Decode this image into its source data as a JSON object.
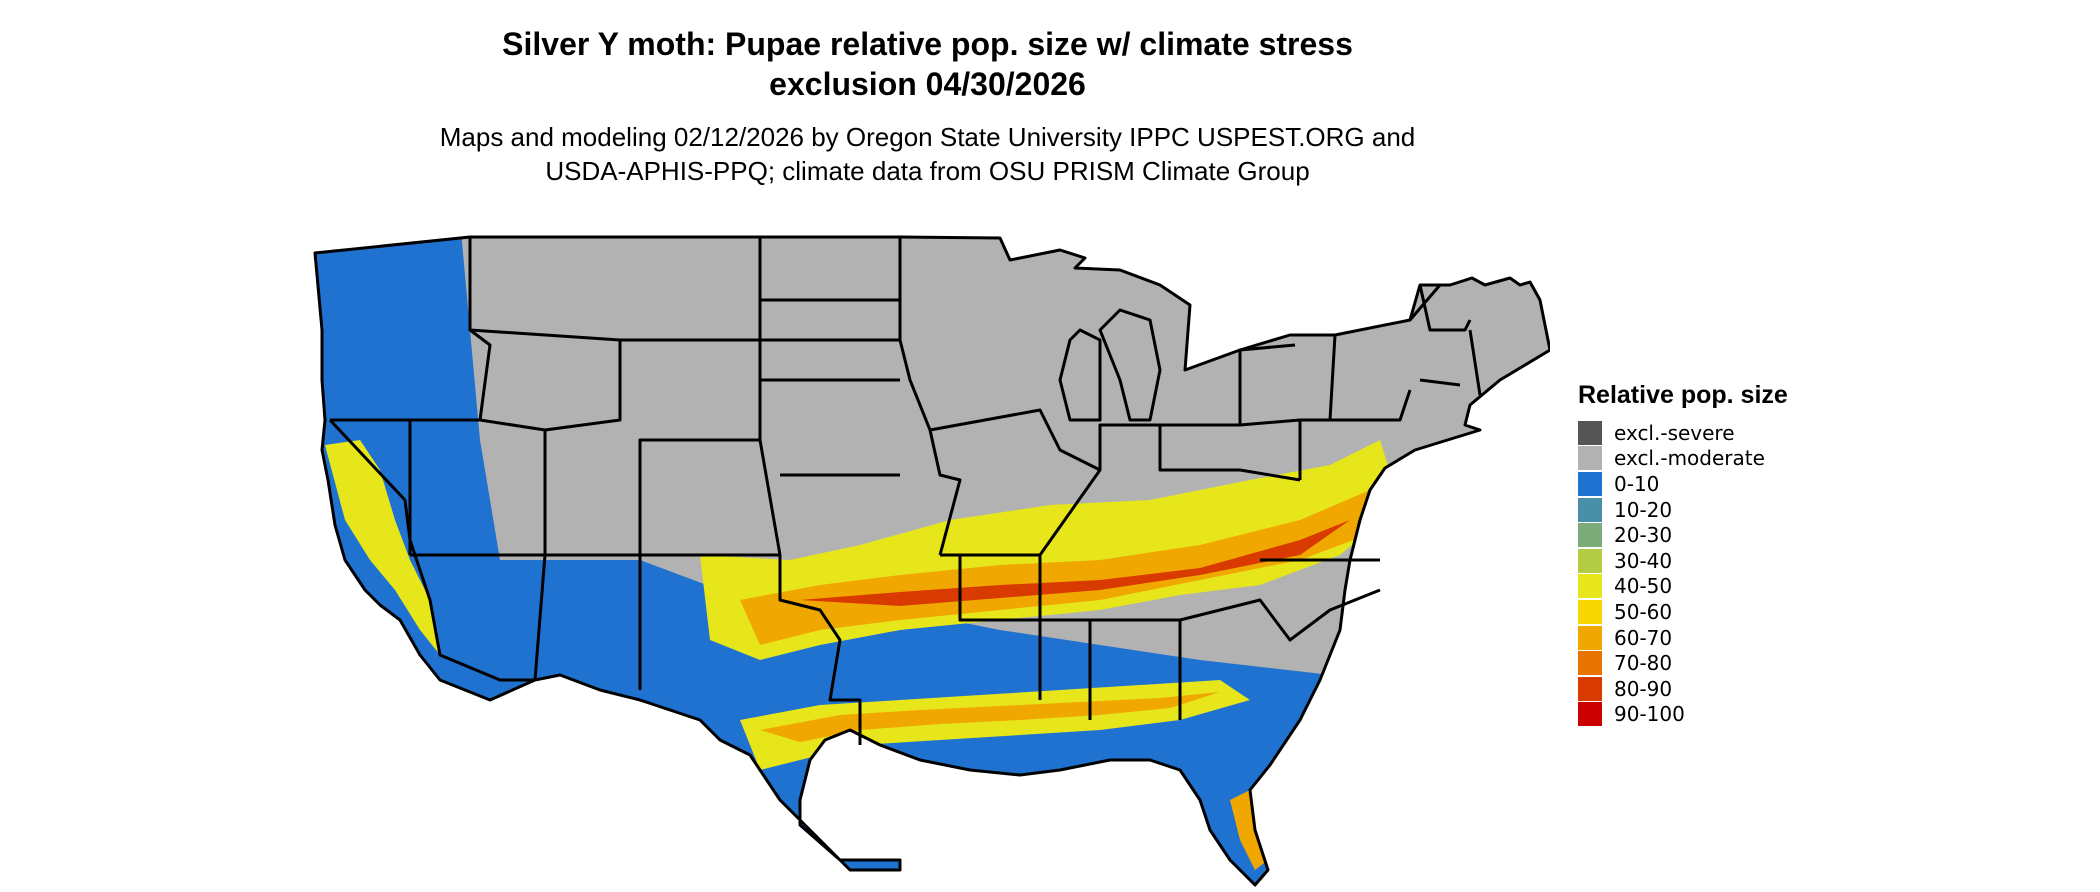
{
  "title": {
    "line1": "Silver Y moth: Pupae relative pop. size w/ climate stress",
    "line2": "exclusion 04/30/2026"
  },
  "subtitle": {
    "line1": "Maps and modeling 02/12/2026 by Oregon State University IPPC USPEST.ORG and",
    "line2": "USDA-APHIS-PPQ; climate data from OSU PRISM Climate Group"
  },
  "legend": {
    "title": "Relative pop. size",
    "items": [
      {
        "label": "excl.-severe",
        "color": "#555555"
      },
      {
        "label": "excl.-moderate",
        "color": "#b2b2b2"
      },
      {
        "label": "0-10",
        "color": "#1f72d0"
      },
      {
        "label": "10-20",
        "color": "#4a8fa8"
      },
      {
        "label": "20-30",
        "color": "#7aab78"
      },
      {
        "label": "30-40",
        "color": "#b2cc44"
      },
      {
        "label": "40-50",
        "color": "#e6e61a"
      },
      {
        "label": "50-60",
        "color": "#f7d700"
      },
      {
        "label": "60-70",
        "color": "#f0a800"
      },
      {
        "label": "70-80",
        "color": "#e87400"
      },
      {
        "label": "80-90",
        "color": "#d83a00"
      },
      {
        "label": "90-100",
        "color": "#cc0000"
      }
    ]
  },
  "map": {
    "region": "contiguous-us",
    "layers": {
      "excl-moderate": "#b2b2b2",
      "low": "#1f72d0",
      "band-mid": "#e6e61a",
      "band-high": "#f0a800",
      "band-peak": "#d83a00",
      "state-borders": "#000000"
    }
  }
}
